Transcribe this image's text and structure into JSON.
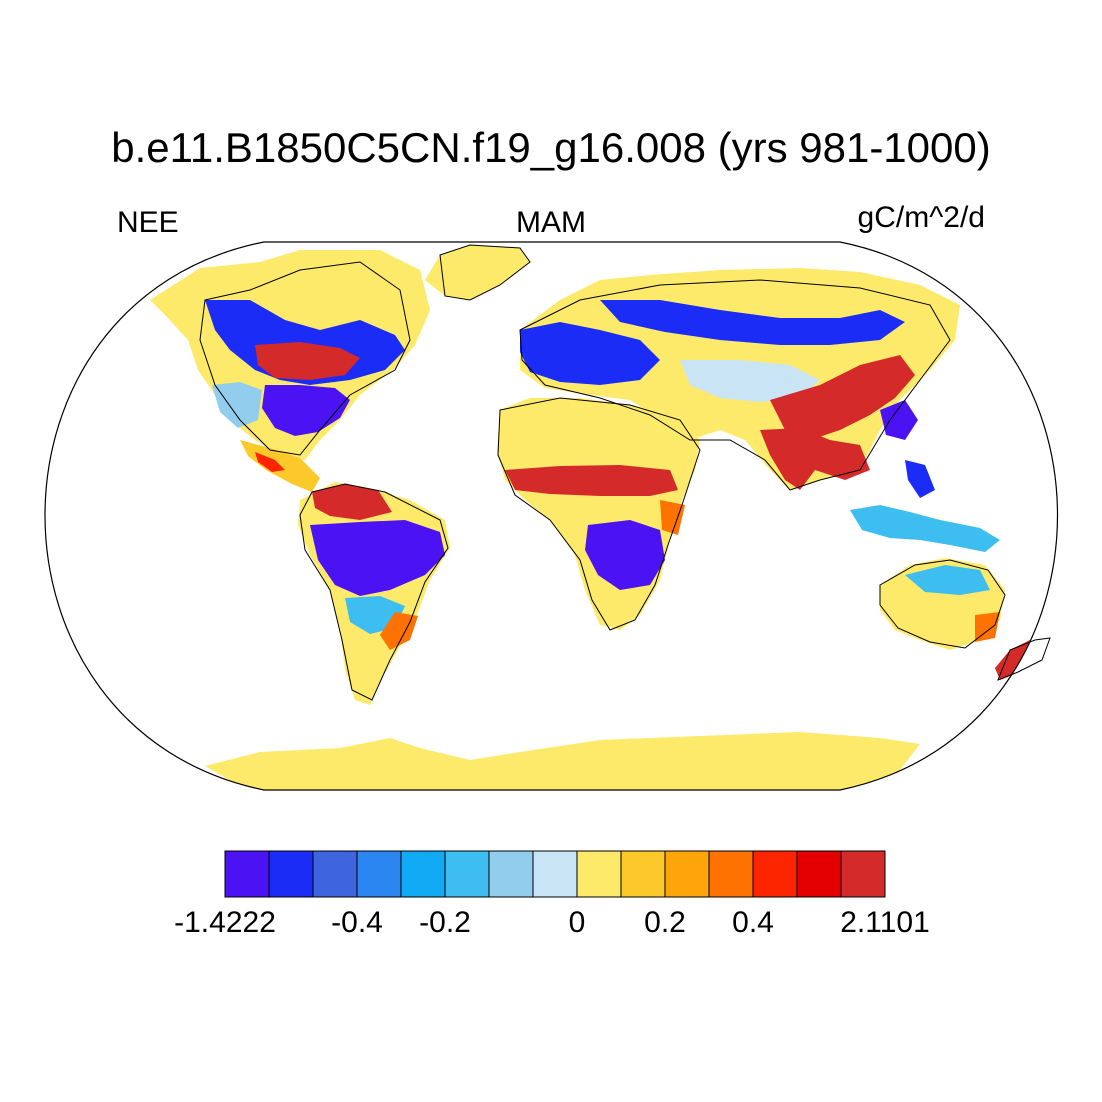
{
  "title": "b.e11.B1850C5CN.f19_g16.008 (yrs 981-1000)",
  "left_label": "NEE",
  "center_label": "MAM",
  "right_label": "gC/m^2/d",
  "colorbar": {
    "colors": [
      "#4b13f4",
      "#1a2cf5",
      "#3f64e0",
      "#2b86f2",
      "#10aaf5",
      "#3dbdf0",
      "#92cdee",
      "#c9e5f5",
      "#fdea6a",
      "#fdc92a",
      "#fda50a",
      "#fd7200",
      "#fd2400",
      "#e50000",
      "#d42a2a"
    ],
    "tick_labels": [
      "-1.4222",
      "-0.4",
      "-0.2",
      "0",
      "0.2",
      "0.4",
      "2.1101"
    ],
    "tick_boundaries": [
      0,
      3,
      5,
      8,
      10,
      12,
      15
    ]
  },
  "regions": [
    {
      "name": "Antarctica",
      "color": "#fdea6a"
    },
    {
      "name": "Greenland",
      "color": "#fdea6a"
    },
    {
      "name": "Sahara",
      "color": "#fdea6a"
    },
    {
      "name": "Sahel belt",
      "color": "#d42a2a"
    },
    {
      "name": "Central Africa",
      "color": "#4b13f4"
    },
    {
      "name": "Amazon",
      "color": "#4b13f4"
    },
    {
      "name": "Northern South America",
      "color": "#d42a2a"
    },
    {
      "name": "Central Canada",
      "color": "#d42a2a"
    },
    {
      "name": "Eastern United States",
      "color": "#4b13f4"
    },
    {
      "name": "Europe",
      "color": "#1a2cf5"
    },
    {
      "name": "Northern Eurasia",
      "color": "#1a2cf5"
    },
    {
      "name": "China",
      "color": "#d42a2a"
    },
    {
      "name": "India",
      "color": "#d42a2a"
    },
    {
      "name": "Australia",
      "color": "#fdea6a"
    },
    {
      "name": "New Zealand",
      "color": "#d42a2a"
    }
  ]
}
